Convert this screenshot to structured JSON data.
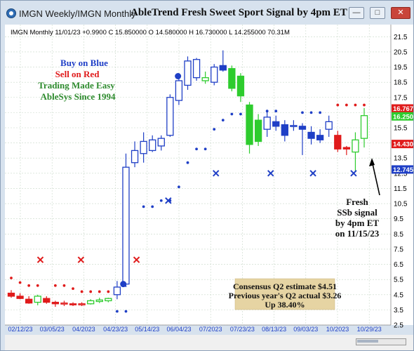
{
  "window": {
    "title": "IMGN  Weekly/IMGN  Monthly",
    "signal_title": "AbleTrend Fresh Sweet Sport Signal by 4pm ET",
    "buttons": [
      "minimize",
      "restore",
      "close"
    ]
  },
  "chart_header": "IMGN  Monthly 11/01/23 +0.9900 C 15.850000 O 14.580000 H 16.730000 L 14.255000 70.31M",
  "legend_text": {
    "line1": "Buy on Blue",
    "line2": "Sell on Red",
    "line3": "Trading Made Easy",
    "line4": "AbleSys Since 1994",
    "colors": {
      "line1": "#1f3fc6",
      "line2": "#e01b1b",
      "line3": "#2e8b2e",
      "line4": "#2e8b2e"
    }
  },
  "callout": {
    "line1": "Fresh",
    "line2": "SSb signal",
    "line3": "by 4pm ET",
    "line4": "on 11/15/23"
  },
  "note_box": {
    "line1": "Consensus Q2 estimate $4.51",
    "line2": "Previous year's Q2 actual $3.26",
    "line3": "Up 38.40%",
    "background": "#e6d4a3"
  },
  "price_tags": [
    {
      "label": "16.7672",
      "value": 16.77,
      "color": "#e01b1b"
    },
    {
      "label": "16.2500",
      "value": 16.25,
      "color": "#2ecc2e"
    },
    {
      "label": "14.4300",
      "value": 14.43,
      "color": "#e01b1b"
    },
    {
      "label": "12.7457",
      "value": 12.75,
      "color": "#1f3fc6"
    }
  ],
  "chart_data": {
    "type": "candlestick",
    "y_ticks": [
      2.5,
      3.5,
      4.5,
      5.5,
      6.5,
      7.5,
      8.5,
      9.5,
      10.5,
      11.5,
      12.5,
      13.5,
      14.5,
      15.5,
      16.5,
      17.5,
      18.5,
      19.5,
      20.5,
      21.5
    ],
    "ylim": [
      2.5,
      22.3
    ],
    "grid": true,
    "x_tick_labels": [
      "02/12/23",
      "03/05/23",
      "04/2023",
      "04/23/23",
      "05/14/23",
      "06/04/23",
      "07/2023",
      "07/23/23",
      "08/13/23",
      "09/03/23",
      "10/2023",
      "10/29/23"
    ],
    "bars": [
      {
        "o": 4.6,
        "h": 4.8,
        "l": 4.3,
        "c": 4.4,
        "color": "red"
      },
      {
        "o": 4.4,
        "h": 4.6,
        "l": 4.2,
        "c": 4.25,
        "color": "red"
      },
      {
        "o": 4.2,
        "h": 4.4,
        "l": 3.9,
        "c": 3.95,
        "color": "red"
      },
      {
        "o": 4.0,
        "h": 4.5,
        "l": 3.8,
        "c": 4.4,
        "color": "green"
      },
      {
        "o": 4.25,
        "h": 4.4,
        "l": 3.9,
        "c": 4.0,
        "color": "red"
      },
      {
        "o": 4.0,
        "h": 4.1,
        "l": 3.7,
        "c": 3.9,
        "color": "red"
      },
      {
        "o": 3.9,
        "h": 4.1,
        "l": 3.75,
        "c": 3.95,
        "color": "red"
      },
      {
        "o": 3.9,
        "h": 4.0,
        "l": 3.75,
        "c": 3.85,
        "color": "red"
      },
      {
        "o": 3.85,
        "h": 4.0,
        "l": 3.75,
        "c": 3.9,
        "color": "red"
      },
      {
        "o": 3.9,
        "h": 4.2,
        "l": 3.85,
        "c": 4.1,
        "color": "green"
      },
      {
        "o": 4.05,
        "h": 4.3,
        "l": 3.95,
        "c": 4.15,
        "color": "green"
      },
      {
        "o": 4.1,
        "h": 4.3,
        "l": 4.0,
        "c": 4.25,
        "color": "green"
      },
      {
        "o": 4.5,
        "h": 5.4,
        "l": 4.2,
        "c": 5.0,
        "color": "blue"
      },
      {
        "o": 5.2,
        "h": 13.8,
        "l": 5.0,
        "c": 12.9,
        "color": "blue"
      },
      {
        "o": 13.2,
        "h": 14.6,
        "l": 12.9,
        "c": 14.0,
        "color": "blue"
      },
      {
        "o": 13.8,
        "h": 15.2,
        "l": 13.2,
        "c": 14.6,
        "color": "blue"
      },
      {
        "o": 14.0,
        "h": 15.0,
        "l": 13.9,
        "c": 14.7,
        "color": "blue"
      },
      {
        "o": 14.3,
        "h": 15.0,
        "l": 14.0,
        "c": 14.8,
        "color": "blue"
      },
      {
        "o": 15.0,
        "h": 17.7,
        "l": 14.9,
        "c": 17.5,
        "color": "blue"
      },
      {
        "o": 17.3,
        "h": 18.9,
        "l": 17.0,
        "c": 18.6,
        "color": "blue"
      },
      {
        "o": 18.3,
        "h": 20.2,
        "l": 18.0,
        "c": 19.9,
        "color": "blue"
      },
      {
        "o": 18.8,
        "h": 20.1,
        "l": 18.6,
        "c": 20.0,
        "color": "blue"
      },
      {
        "o": 18.6,
        "h": 19.2,
        "l": 18.4,
        "c": 18.8,
        "color": "green"
      },
      {
        "o": 18.5,
        "h": 19.7,
        "l": 18.3,
        "c": 19.5,
        "color": "blue"
      },
      {
        "o": 19.6,
        "h": 20.6,
        "l": 19.2,
        "c": 19.3,
        "color": "blue"
      },
      {
        "o": 19.4,
        "h": 19.6,
        "l": 17.9,
        "c": 18.1,
        "color": "green"
      },
      {
        "o": 18.9,
        "h": 19.1,
        "l": 17.2,
        "c": 17.6,
        "color": "green"
      },
      {
        "o": 17.0,
        "h": 17.2,
        "l": 13.8,
        "c": 14.4,
        "color": "green"
      },
      {
        "o": 16.0,
        "h": 16.4,
        "l": 14.3,
        "c": 14.6,
        "color": "green"
      },
      {
        "o": 15.4,
        "h": 16.6,
        "l": 14.9,
        "c": 16.2,
        "color": "blue"
      },
      {
        "o": 15.9,
        "h": 16.3,
        "l": 15.3,
        "c": 15.6,
        "color": "blue"
      },
      {
        "o": 15.7,
        "h": 16.0,
        "l": 14.6,
        "c": 15.0,
        "color": "blue"
      },
      {
        "o": 15.6,
        "h": 16.0,
        "l": 15.3,
        "c": 15.65,
        "color": "blue"
      },
      {
        "o": 15.6,
        "h": 15.8,
        "l": 13.7,
        "c": 15.4,
        "color": "blue"
      },
      {
        "o": 15.2,
        "h": 15.6,
        "l": 14.4,
        "c": 14.8,
        "color": "blue"
      },
      {
        "o": 15.0,
        "h": 15.4,
        "l": 14.5,
        "c": 14.7,
        "color": "blue"
      },
      {
        "o": 15.4,
        "h": 16.3,
        "l": 14.9,
        "c": 15.9,
        "color": "blue"
      },
      {
        "o": 15.0,
        "h": 15.3,
        "l": 13.9,
        "c": 14.1,
        "color": "red"
      },
      {
        "o": 14.2,
        "h": 14.3,
        "l": 13.7,
        "c": 14.1,
        "color": "red"
      },
      {
        "o": 13.9,
        "h": 15.2,
        "l": 12.6,
        "c": 14.7,
        "color": "green"
      },
      {
        "o": 14.8,
        "h": 16.8,
        "l": 14.2,
        "c": 16.3,
        "color": "green"
      }
    ],
    "stops": [
      {
        "i": 0,
        "v": 5.6,
        "color": "red"
      },
      {
        "i": 1,
        "v": 5.3,
        "color": "red"
      },
      {
        "i": 2,
        "v": 5.1,
        "color": "red"
      },
      {
        "i": 3,
        "v": 5.1,
        "color": "red"
      },
      {
        "i": 5,
        "v": 5.1,
        "color": "red"
      },
      {
        "i": 6,
        "v": 5.1,
        "color": "red"
      },
      {
        "i": 7,
        "v": 4.9,
        "color": "red"
      },
      {
        "i": 8,
        "v": 4.7,
        "color": "red"
      },
      {
        "i": 9,
        "v": 4.7,
        "color": "red"
      },
      {
        "i": 10,
        "v": 4.7,
        "color": "red"
      },
      {
        "i": 11,
        "v": 4.7,
        "color": "red"
      },
      {
        "i": 12,
        "v": 3.4,
        "color": "blue"
      },
      {
        "i": 13,
        "v": 3.4,
        "color": "blue"
      },
      {
        "i": 15,
        "v": 10.3,
        "color": "blue"
      },
      {
        "i": 16,
        "v": 10.3,
        "color": "blue"
      },
      {
        "i": 17,
        "v": 10.7,
        "color": "blue"
      },
      {
        "i": 18,
        "v": 10.7,
        "color": "blue"
      },
      {
        "i": 19,
        "v": 11.6,
        "color": "blue"
      },
      {
        "i": 20,
        "v": 13.2,
        "color": "blue"
      },
      {
        "i": 21,
        "v": 14.1,
        "color": "blue"
      },
      {
        "i": 22,
        "v": 14.1,
        "color": "blue"
      },
      {
        "i": 23,
        "v": 15.4,
        "color": "blue"
      },
      {
        "i": 24,
        "v": 16.0,
        "color": "blue"
      },
      {
        "i": 25,
        "v": 16.4,
        "color": "blue"
      },
      {
        "i": 26,
        "v": 16.4,
        "color": "blue"
      },
      {
        "i": 27,
        "v": 16.4,
        "color": "blue"
      },
      {
        "i": 29,
        "v": 16.6,
        "color": "blue"
      },
      {
        "i": 30,
        "v": 16.6,
        "color": "blue"
      },
      {
        "i": 33,
        "v": 16.5,
        "color": "blue"
      },
      {
        "i": 34,
        "v": 16.5,
        "color": "blue"
      },
      {
        "i": 35,
        "v": 16.5,
        "color": "blue"
      },
      {
        "i": 37,
        "v": 17.0,
        "color": "red"
      },
      {
        "i": 38,
        "v": 17.0,
        "color": "red"
      },
      {
        "i": 39,
        "v": 17.0,
        "color": "red"
      },
      {
        "i": 40,
        "v": 17.0,
        "color": "red"
      }
    ],
    "markers": [
      {
        "i": 3.3,
        "v": 6.8,
        "shape": "x",
        "color": "red"
      },
      {
        "i": 7.9,
        "v": 6.8,
        "shape": "x",
        "color": "red"
      },
      {
        "i": 14.2,
        "v": 6.8,
        "shape": "x",
        "color": "red"
      },
      {
        "i": 17.8,
        "v": 10.7,
        "shape": "x",
        "color": "blue"
      },
      {
        "i": 23.2,
        "v": 12.5,
        "shape": "x",
        "color": "blue"
      },
      {
        "i": 29.4,
        "v": 12.5,
        "shape": "x",
        "color": "blue"
      },
      {
        "i": 34.2,
        "v": 12.5,
        "shape": "x",
        "color": "blue"
      },
      {
        "i": 38.8,
        "v": 12.5,
        "shape": "x",
        "color": "blue"
      },
      {
        "i": 12.7,
        "v": 5.2,
        "shape": "dot",
        "color": "blue"
      },
      {
        "i": 18.9,
        "v": 18.9,
        "shape": "dot",
        "color": "blue"
      }
    ]
  }
}
